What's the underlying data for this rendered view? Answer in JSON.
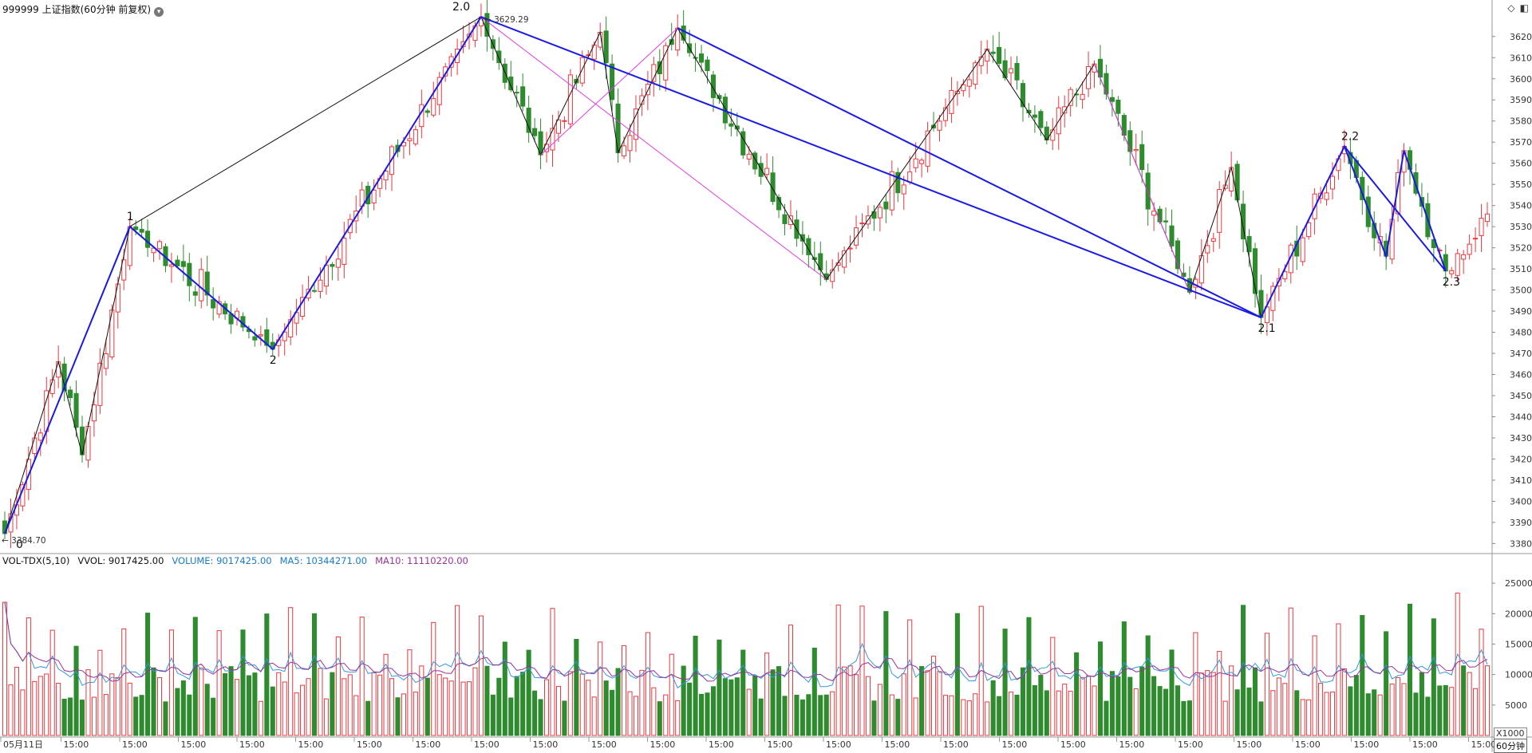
{
  "header": {
    "title": "999999 上证指数(60分钟 前复权)",
    "dropdown_icon": "chevron-down-icon",
    "icons": [
      "diamond-icon",
      "panel-toggle-icon"
    ]
  },
  "colors": {
    "up": "#e8393e",
    "down": "#2e8b2e",
    "wave_main": "#1a1ae6",
    "wave_sub": "#111111",
    "channel": "#e040e0",
    "ma5": "#3399dd",
    "ma10": "#993399"
  },
  "annotations": {
    "high_label": "3629.29",
    "low_label": "3384.70",
    "wave_labels": [
      "0",
      "1",
      "2",
      "2.0",
      "2.1",
      "2.2",
      "2.3"
    ]
  },
  "volume_legend": {
    "name": "VOL-TDX(5,10)",
    "vvol": "VVOL: 9017425.00",
    "volume": "VOLUME: 9017425.00",
    "ma5": "MA5: 10344271.00",
    "ma10": "MA10: 11110220.00"
  },
  "volume_unit": "X1000",
  "period_tag": "60分钟",
  "x_axis_labels": [
    "05月11日",
    "15:00",
    "15:00",
    "15:00",
    "15:00",
    "15:00",
    "15:00",
    "15:00",
    "15:00",
    "15:00",
    "15:00",
    "15:00",
    "15:00",
    "15:00",
    "15:00",
    "15:00",
    "15:00",
    "15:00",
    "15:00",
    "15:00",
    "15:00",
    "15:00",
    "15:00",
    "15:00",
    "15:00",
    "15:00"
  ],
  "chart_data": [
    {
      "type": "candlestick",
      "title": "999999 上证指数(60分钟 前复权)",
      "y_ticks": [
        3380,
        3390,
        3400,
        3410,
        3420,
        3430,
        3440,
        3450,
        3460,
        3470,
        3480,
        3490,
        3500,
        3510,
        3520,
        3530,
        3540,
        3550,
        3560,
        3570,
        3580,
        3590,
        3600,
        3610,
        3620
      ],
      "ylim": [
        3376,
        3632
      ],
      "bars_count": 250,
      "pivots": [
        {
          "bar": 0,
          "price": 3384.7,
          "label": "0"
        },
        {
          "bar": 9,
          "price": 3466,
          "label": ""
        },
        {
          "bar": 13,
          "price": 3422,
          "label": ""
        },
        {
          "bar": 21,
          "price": 3530,
          "label": "1"
        },
        {
          "bar": 45,
          "price": 3472,
          "label": "2"
        },
        {
          "bar": 80,
          "price": 3629.29,
          "label": "2.0"
        },
        {
          "bar": 90,
          "price": 3564,
          "label": ""
        },
        {
          "bar": 100,
          "price": 3622,
          "label": ""
        },
        {
          "bar": 103,
          "price": 3565,
          "label": ""
        },
        {
          "bar": 113,
          "price": 3624,
          "label": ""
        },
        {
          "bar": 138,
          "price": 3505,
          "label": ""
        },
        {
          "bar": 165,
          "price": 3614,
          "label": ""
        },
        {
          "bar": 175,
          "price": 3571,
          "label": ""
        },
        {
          "bar": 183,
          "price": 3607,
          "label": ""
        },
        {
          "bar": 199,
          "price": 3499,
          "label": ""
        },
        {
          "bar": 206,
          "price": 3558,
          "label": ""
        },
        {
          "bar": 211,
          "price": 3487,
          "label": "2.1"
        },
        {
          "bar": 225,
          "price": 3568,
          "label": "2.2"
        },
        {
          "bar": 232,
          "price": 3516,
          "label": ""
        },
        {
          "bar": 235,
          "price": 3566,
          "label": ""
        },
        {
          "bar": 242,
          "price": 3509,
          "label": "2.3"
        },
        {
          "bar": 249,
          "price": 3536,
          "label": ""
        }
      ],
      "wave_main": [
        [
          0,
          3384.7
        ],
        [
          21,
          3530
        ],
        [
          45,
          3472
        ],
        [
          80,
          3629.29
        ],
        [
          211,
          3487
        ],
        [
          225,
          3568
        ],
        [
          232,
          3516
        ],
        [
          235,
          3566
        ],
        [
          242,
          3509
        ]
      ],
      "wave_main_secondary": [
        [
          225,
          3568
        ],
        [
          242,
          3509
        ]
      ],
      "wave_sub": [
        [
          0,
          3384.7
        ],
        [
          9,
          3466
        ],
        [
          13,
          3422
        ],
        [
          21,
          3530
        ],
        [
          80,
          3629.29
        ],
        [
          90,
          3564
        ],
        [
          100,
          3622
        ],
        [
          103,
          3565
        ],
        [
          113,
          3624
        ],
        [
          138,
          3505
        ],
        [
          165,
          3614
        ],
        [
          175,
          3571
        ],
        [
          183,
          3607
        ],
        [
          199,
          3499
        ],
        [
          206,
          3558
        ],
        [
          211,
          3487
        ]
      ],
      "channel": [
        [
          [
            80,
            3629.29
          ],
          [
            138,
            3505
          ]
        ],
        [
          [
            90,
            3564
          ],
          [
            113,
            3624
          ]
        ],
        [
          [
            183,
            3607
          ],
          [
            199,
            3499
          ]
        ]
      ],
      "trendline": [
        [
          113,
          3624
        ],
        [
          211,
          3487
        ]
      ]
    },
    {
      "type": "bar",
      "title": "VOL-TDX(5,10)",
      "y_ticks": [
        5000,
        10000,
        15000,
        20000,
        25000
      ],
      "ylim": [
        0,
        27500
      ],
      "unit": "X1000",
      "series": [
        {
          "name": "VOLUME",
          "last": 9017425.0
        },
        {
          "name": "MA5",
          "last": 10344271.0
        },
        {
          "name": "MA10",
          "last": 11110220.0
        }
      ]
    }
  ]
}
